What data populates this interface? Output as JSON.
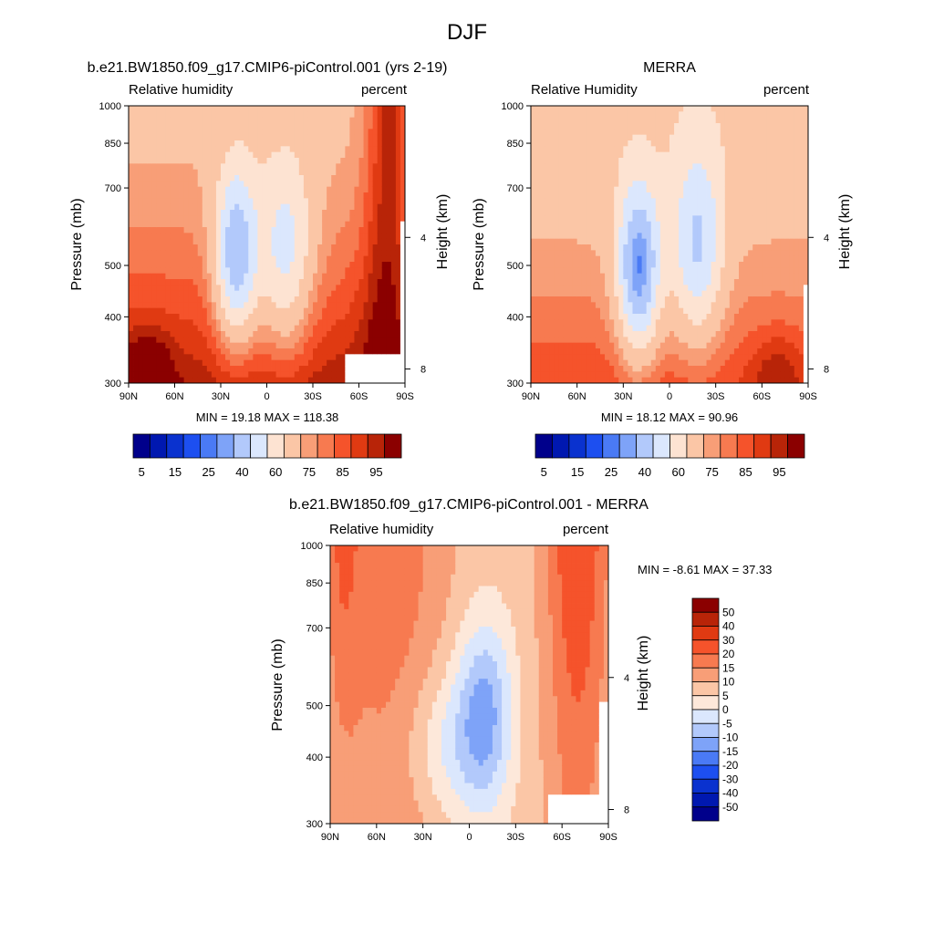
{
  "page_title": "DJF",
  "colors": {
    "abs_scale": [
      "#00008b",
      "#0018b0",
      "#0a32cf",
      "#1d4ff0",
      "#4a7af5",
      "#7ea3f8",
      "#b2c9fb",
      "#dbe7fd",
      "#fde3d2",
      "#fbc6a6",
      "#f89e77",
      "#f77a50",
      "#f5532b",
      "#e03a12",
      "#b82408",
      "#8b0000"
    ],
    "diff_scale": [
      "#00008b",
      "#0018b0",
      "#0a32cf",
      "#1d4ff0",
      "#4a7af5",
      "#7ea3f8",
      "#b2c9fb",
      "#dbe7fd",
      "#fde8da",
      "#fbc6a6",
      "#f89e77",
      "#f77a50",
      "#f5532b",
      "#e03a12",
      "#b82408",
      "#8b0000"
    ],
    "missing": "#ffffff"
  },
  "chart_data": [
    {
      "type": "heatmap",
      "id": "model",
      "title": "b.e21.BW1850.f09_g17.CMIP6-piControl.001 (yrs 2-19)",
      "left_label": "Relative humidity",
      "right_label": "percent",
      "ylabel": "Pressure (mb)",
      "ylabel_right": "Height (km)",
      "x_ticks": [
        "90N",
        "60N",
        "30N",
        "0",
        "30S",
        "60S",
        "90S"
      ],
      "y_ticks": [
        "300",
        "400",
        "500",
        "700",
        "850",
        "1000"
      ],
      "height_ticks": [
        "8",
        "4"
      ],
      "stats": "MIN =  19.18  MAX = 118.38",
      "colorbar_labels": [
        "5",
        "15",
        "25",
        "40",
        "60",
        "75",
        "85",
        "95"
      ],
      "x_range": [
        90,
        -90
      ],
      "y_range": [
        1000,
        300
      ],
      "y_scale": "log-pressure"
    },
    {
      "type": "heatmap",
      "id": "obs",
      "title": "MERRA",
      "left_label": "Relative Humidity",
      "right_label": "percent",
      "ylabel": "Pressure (mb)",
      "ylabel_right": "Height (km)",
      "x_ticks": [
        "90N",
        "60N",
        "30N",
        "0",
        "30S",
        "60S",
        "90S"
      ],
      "y_ticks": [
        "300",
        "400",
        "500",
        "700",
        "850",
        "1000"
      ],
      "height_ticks": [
        "8",
        "4"
      ],
      "stats": "MIN =  18.12  MAX = 90.96",
      "colorbar_labels": [
        "5",
        "15",
        "25",
        "40",
        "60",
        "75",
        "85",
        "95"
      ],
      "x_range": [
        90,
        -90
      ],
      "y_range": [
        1000,
        300
      ],
      "y_scale": "log-pressure"
    },
    {
      "type": "heatmap",
      "id": "diff",
      "title": "b.e21.BW1850.f09_g17.CMIP6-piControl.001 - MERRA",
      "left_label": "Relative humidity",
      "right_label": "percent",
      "ylabel": "Pressure (mb)",
      "ylabel_right": "Height (km)",
      "x_ticks": [
        "90N",
        "60N",
        "30N",
        "0",
        "30S",
        "60S",
        "90S"
      ],
      "y_ticks": [
        "300",
        "400",
        "500",
        "700",
        "850",
        "1000"
      ],
      "height_ticks": [
        "8",
        "4"
      ],
      "stats": "MIN =  -8.61  MAX =  37.33",
      "colorbar_labels": [
        "50",
        "40",
        "30",
        "20",
        "15",
        "10",
        "5",
        "0",
        "-5",
        "-10",
        "-15",
        "-20",
        "-30",
        "-40",
        "-50"
      ],
      "x_range": [
        90,
        -90
      ],
      "y_range": [
        1000,
        300
      ],
      "y_scale": "log-pressure"
    }
  ]
}
